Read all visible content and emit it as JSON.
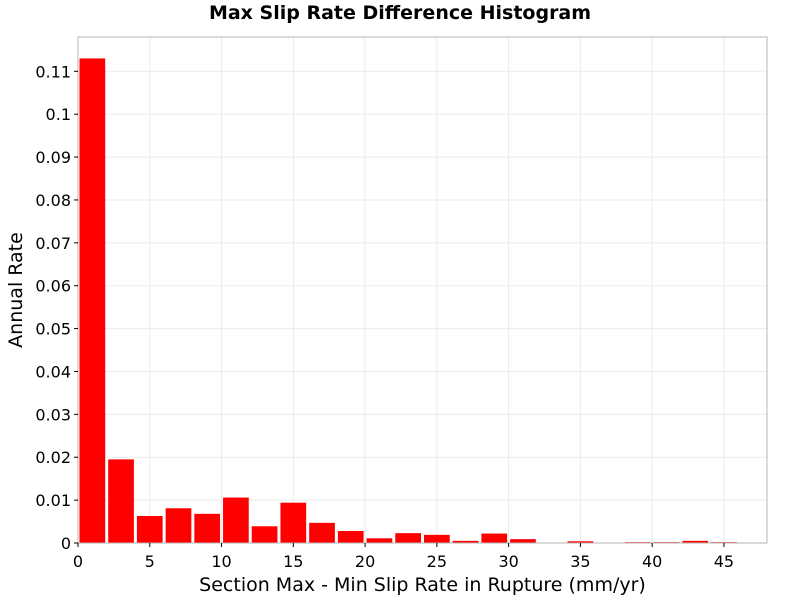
{
  "chart_data": {
    "type": "bar",
    "title": "Max Slip Rate Difference Histogram",
    "xlabel": "Section Max - Min Slip Rate in Rupture (mm/yr)",
    "ylabel": "Annual Rate",
    "xlim": [
      0,
      48
    ],
    "ylim": [
      0,
      0.118
    ],
    "bin_width": 2,
    "x_ticks": [
      0,
      5,
      10,
      15,
      20,
      25,
      30,
      35,
      40,
      45
    ],
    "y_ticks": [
      0,
      0.01,
      0.02,
      0.03,
      0.04,
      0.05,
      0.06,
      0.07,
      0.08,
      0.09,
      0.1,
      0.11
    ],
    "y_tick_labels": [
      "0",
      "0.01",
      "0.02",
      "0.03",
      "0.04",
      "0.05",
      "0.06",
      "0.07",
      "0.08",
      "0.09",
      "0.1",
      "0.11"
    ],
    "bin_centers": [
      1,
      3,
      5,
      7,
      9,
      11,
      13,
      15,
      17,
      19,
      21,
      23,
      25,
      27,
      29,
      31,
      33,
      35,
      37,
      39,
      41,
      43,
      45
    ],
    "values": [
      0.113,
      0.0195,
      0.0063,
      0.0081,
      0.0068,
      0.0106,
      0.0039,
      0.0094,
      0.0047,
      0.0028,
      0.0011,
      0.0023,
      0.0019,
      0.0005,
      0.0022,
      0.0009,
      0.0001,
      0.0004,
      0.0001,
      0.0002,
      0.0002,
      0.0005,
      0.0002
    ],
    "bar_color": "#ff0000",
    "grid": true,
    "grid_color": "#ebebeb",
    "frame_color": "#b4b4b4"
  }
}
